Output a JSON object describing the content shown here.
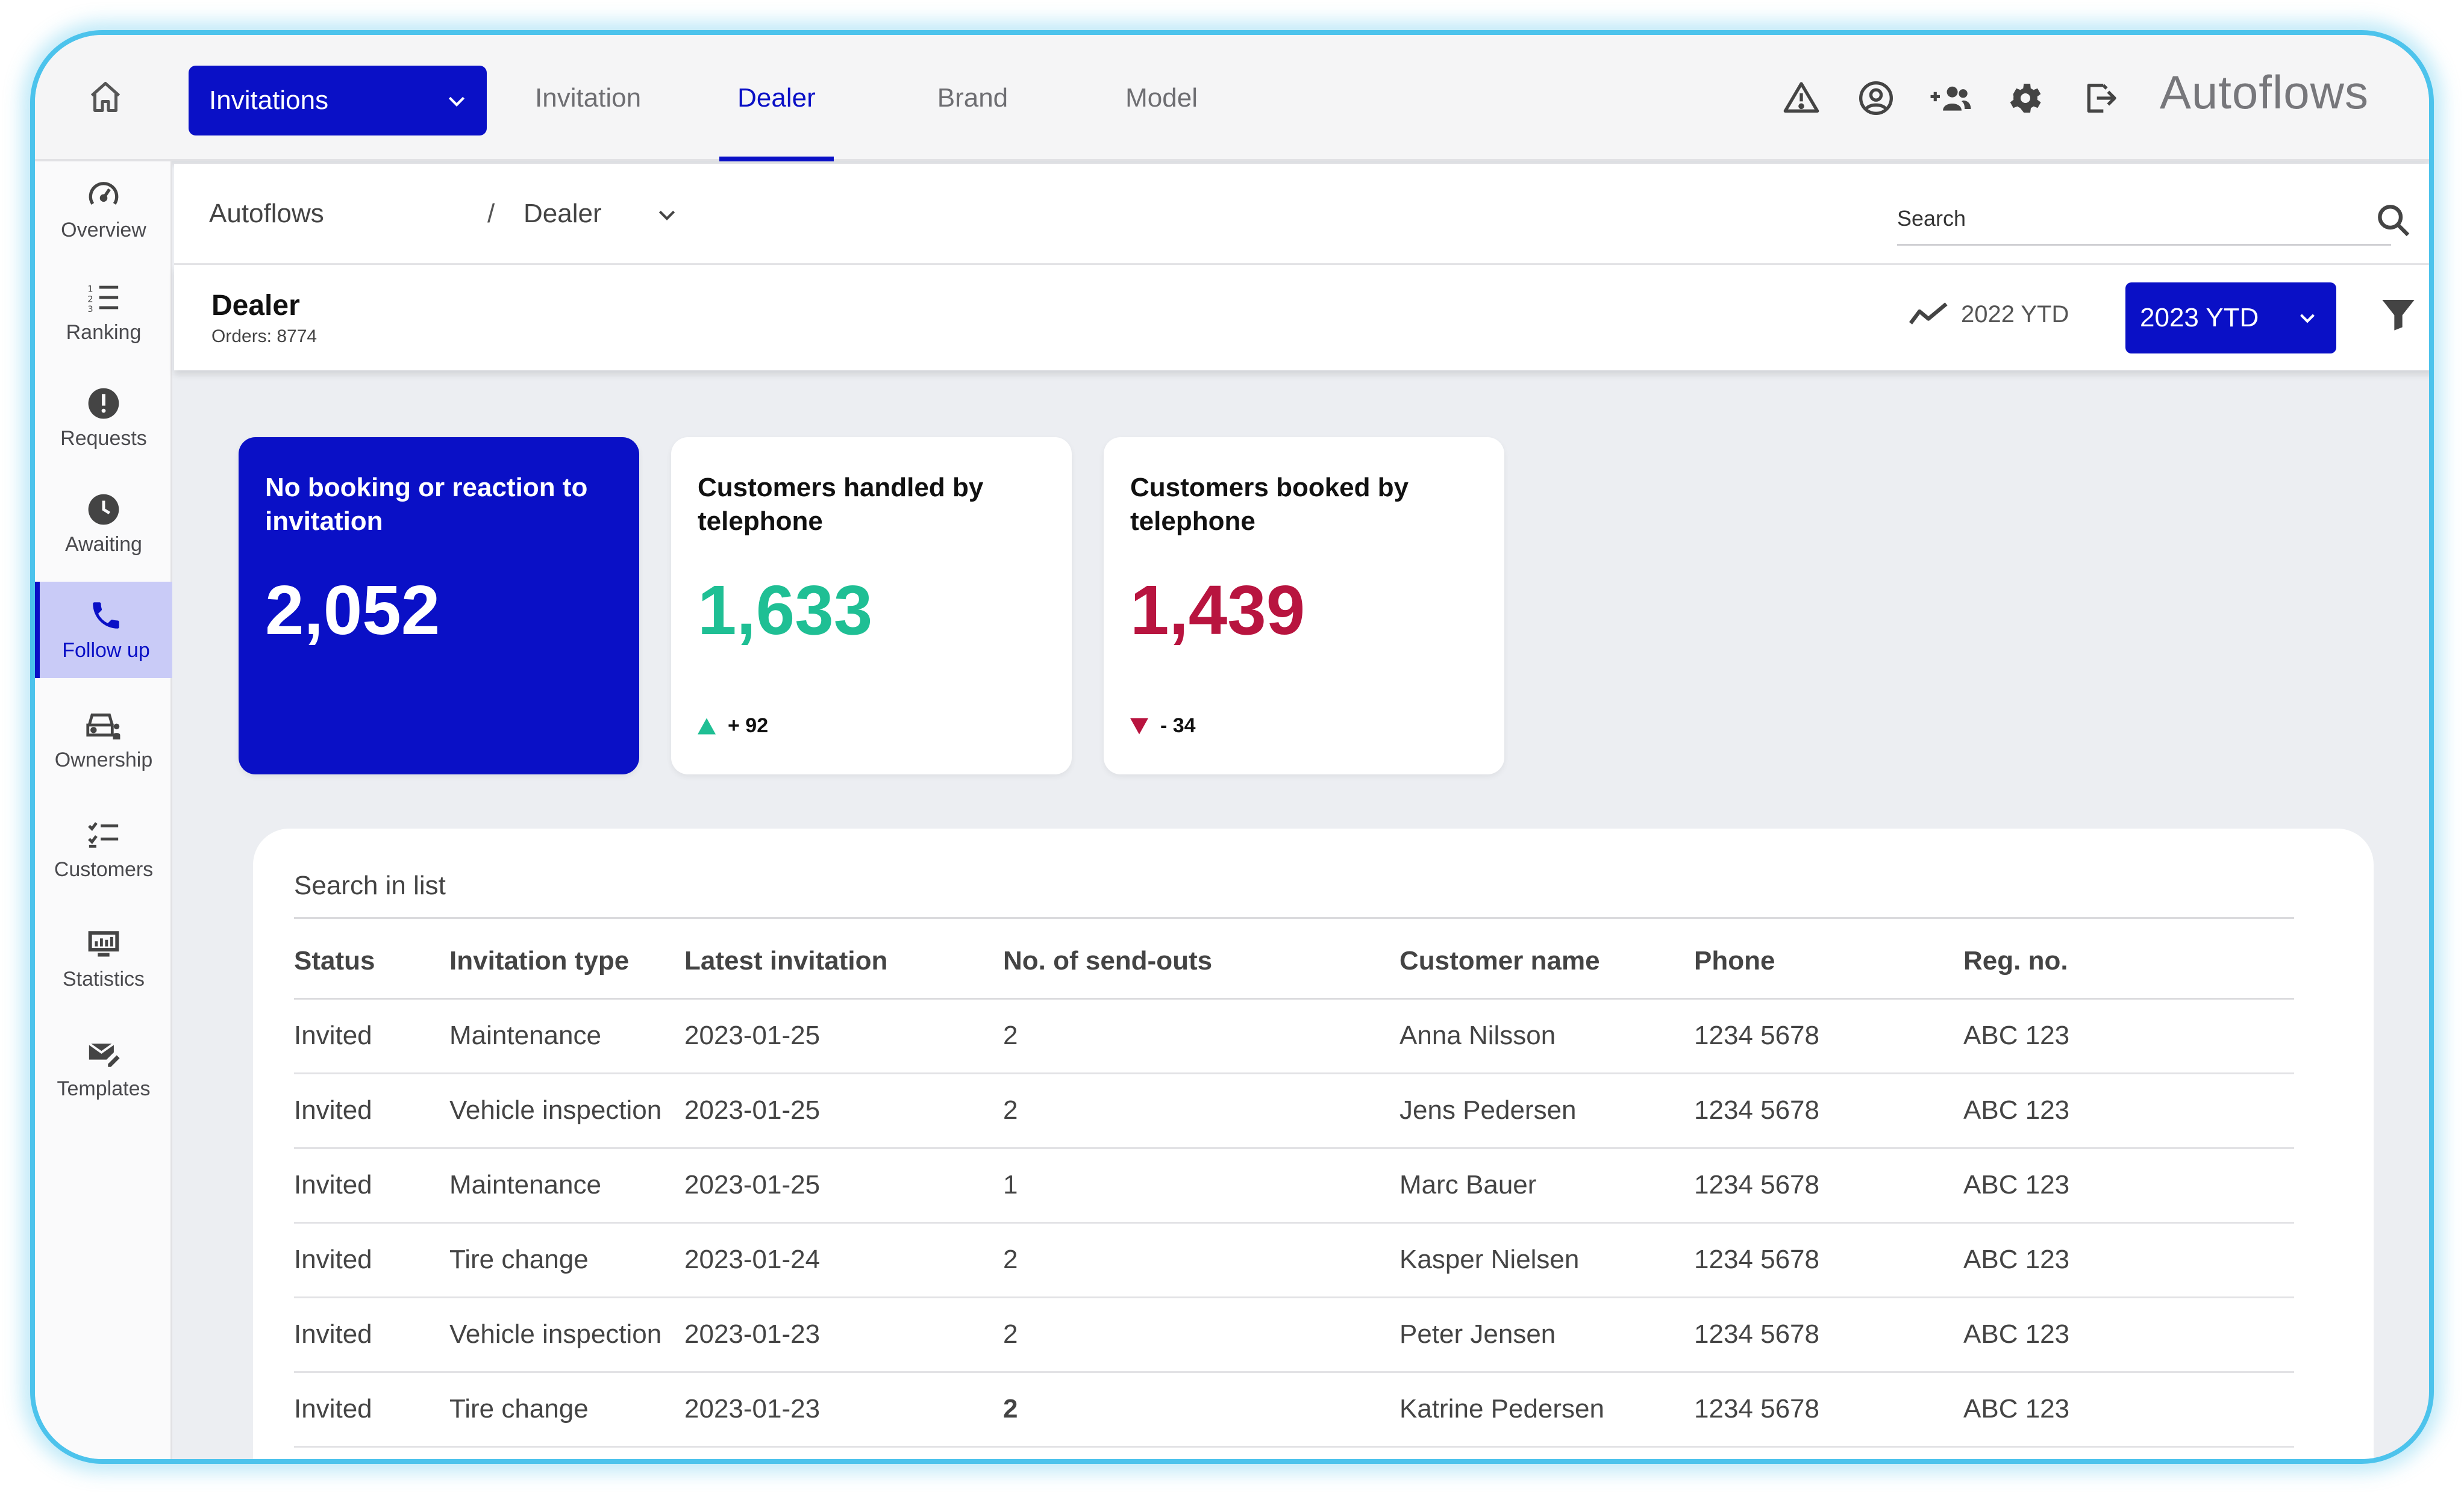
{
  "topbar": {
    "module_select": "Invitations",
    "tabs": [
      {
        "label": "Invitation"
      },
      {
        "label": "Dealer"
      },
      {
        "label": "Brand"
      },
      {
        "label": "Model"
      }
    ],
    "active_tab": "Dealer",
    "brand": "Autoflows",
    "icons": [
      "warning-icon",
      "account-icon",
      "add-group-icon",
      "settings-icon",
      "logout-icon"
    ]
  },
  "sidebar": {
    "items": [
      {
        "label": "Overview",
        "icon": "speedometer-icon"
      },
      {
        "label": "Ranking",
        "icon": "ranked-list-icon"
      },
      {
        "label": "Requests",
        "icon": "alert-circle-icon"
      },
      {
        "label": "Awaiting",
        "icon": "clock-icon"
      },
      {
        "label": "Follow up",
        "icon": "phone-icon"
      },
      {
        "label": "Ownership",
        "icon": "car-person-icon"
      },
      {
        "label": "Customers",
        "icon": "checklist-icon"
      },
      {
        "label": "Statistics",
        "icon": "monitor-chart-icon"
      },
      {
        "label": "Templates",
        "icon": "mail-edit-icon"
      }
    ],
    "active": "Follow up"
  },
  "breadcrumb": {
    "root": "Autoflows",
    "separator": "/",
    "current": "Dealer"
  },
  "search": {
    "placeholder": "Search"
  },
  "header": {
    "title": "Dealer",
    "subtitle": "Orders: 8774",
    "compare_period": "2022 YTD",
    "period_select": "2023 YTD"
  },
  "kpis": [
    {
      "title": "No booking or reaction to invitation",
      "value": "2,052",
      "delta": ""
    },
    {
      "title": "Customers handled by telephone",
      "value": "1,633",
      "delta": "+ 92",
      "trend": "up"
    },
    {
      "title": "Customers booked by telephone",
      "value": "1,439",
      "delta": "- 34",
      "trend": "down"
    }
  ],
  "colors": {
    "accent": "#0a10c6",
    "positive": "#1fbf94",
    "negative": "#b8143f",
    "frame": "#4cc3ec"
  },
  "list": {
    "search_placeholder": "Search in list",
    "columns": [
      "Status",
      "Invitation type",
      "Latest invitation",
      "No. of send-outs",
      "Customer name",
      "Phone",
      "Reg. no."
    ],
    "rows": [
      [
        "Invited",
        "Maintenance",
        "2023-01-25",
        "2",
        "Anna Nilsson",
        "1234 5678",
        "ABC 123"
      ],
      [
        "Invited",
        "Vehicle inspection",
        "2023-01-25",
        "2",
        "Jens Pedersen",
        "1234 5678",
        "ABC 123"
      ],
      [
        "Invited",
        "Maintenance",
        "2023-01-25",
        "1",
        "Marc Bauer",
        "1234 5678",
        "ABC 123"
      ],
      [
        "Invited",
        "Tire change",
        "2023-01-24",
        "2",
        "Kasper Nielsen",
        "1234 5678",
        "ABC 123"
      ],
      [
        "Invited",
        "Vehicle inspection",
        "2023-01-23",
        "2",
        "Peter Jensen",
        "1234 5678",
        "ABC 123"
      ],
      [
        "Invited",
        "Tire change",
        "2023-01-23",
        "2",
        "Katrine Pedersen",
        "1234 5678",
        "ABC 123"
      ]
    ]
  }
}
